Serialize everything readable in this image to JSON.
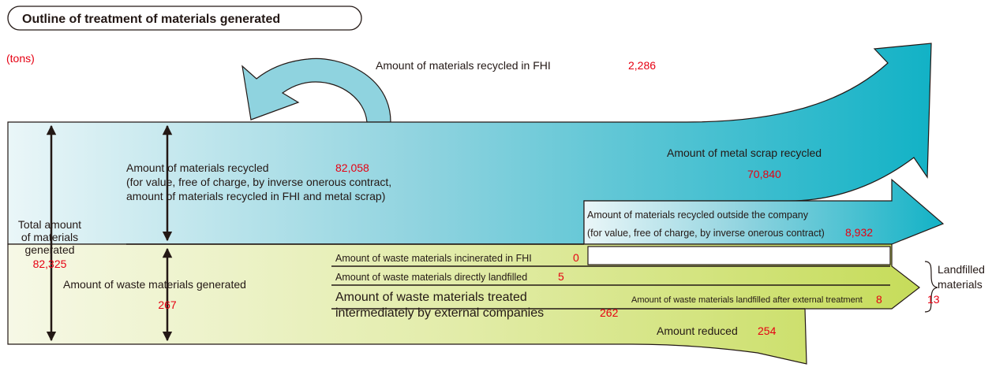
{
  "title": "Outline of treatment of materials generated",
  "unit": "(tons)",
  "recycled_in_fhi": {
    "label": "Amount of materials recycled in FHI",
    "value": "2,286"
  },
  "recycled": {
    "label": "Amount of materials recycled",
    "value": "82,058",
    "note": [
      "(for value, free of charge, by inverse onerous contract,",
      "amount of materials recycled in FHI and metal scrap)"
    ]
  },
  "metal_scrap": {
    "label": "Amount of metal scrap recycled",
    "value": "70,840"
  },
  "recycled_outside": {
    "label": "Amount of materials recycled outside the company",
    "note": "(for value, free of charge, by inverse onerous contract)",
    "value": "8,932"
  },
  "total": {
    "label": [
      "Total amount",
      "of materials",
      "generated"
    ],
    "value": "82,325"
  },
  "waste": {
    "label": "Amount of waste materials generated",
    "value": "267"
  },
  "incinerated": {
    "label": "Amount of waste materials incinerated in FHI",
    "value": "0"
  },
  "directly_landfilled": {
    "label": "Amount of waste materials directly landfilled",
    "value": "5"
  },
  "treated_external": {
    "label": [
      "Amount of waste materials treated",
      "intermediately by external companies"
    ],
    "value": "262"
  },
  "landfilled_after": {
    "label": "Amount of waste materials landfilled after external treatment",
    "value": "8"
  },
  "reduced": {
    "label": "Amount reduced",
    "value": "254"
  },
  "landfilled": {
    "label": [
      "Landfilled",
      "materials"
    ],
    "value": "13"
  }
}
